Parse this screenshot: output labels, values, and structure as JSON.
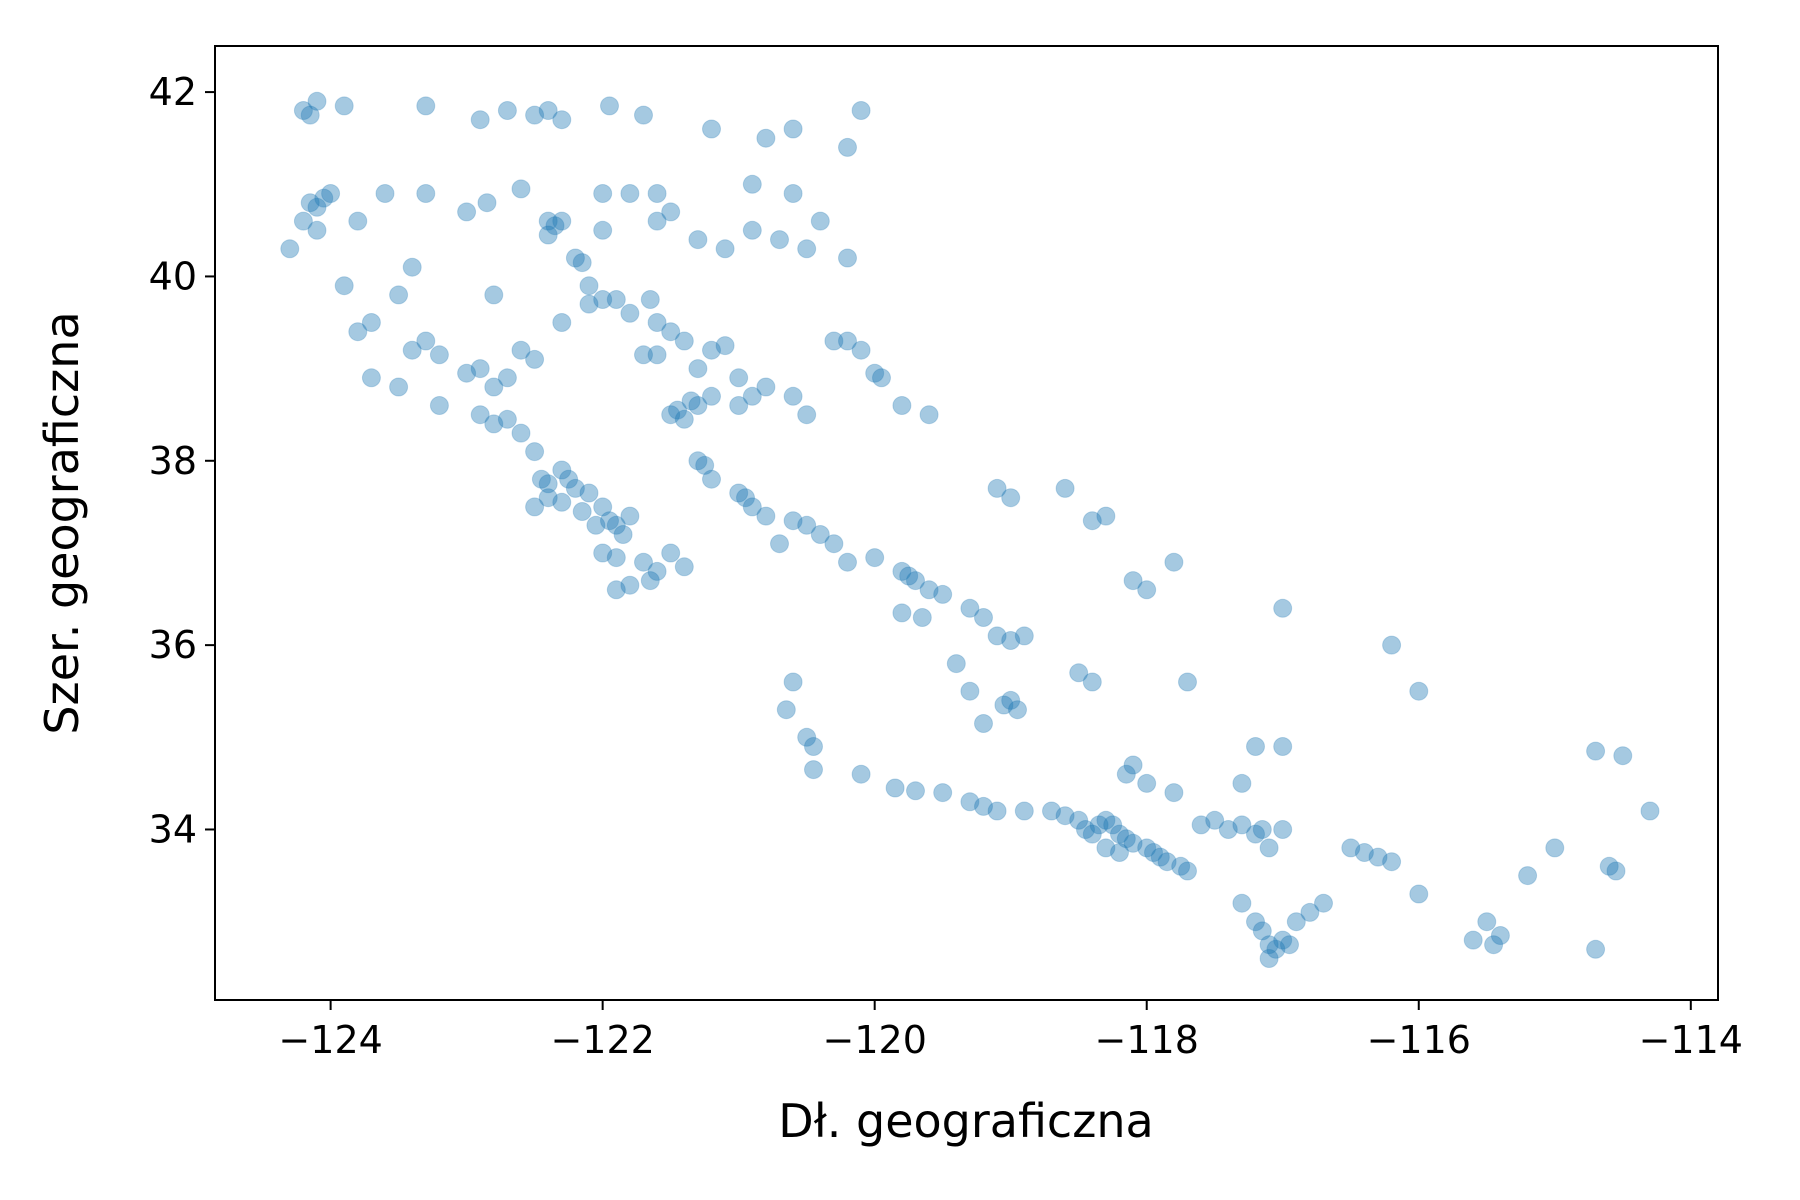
{
  "chart_data": {
    "type": "scatter",
    "title": "",
    "xlabel": "Dł. geograficzna",
    "ylabel": "Szer. geograficzna",
    "xlim": [
      -124.85,
      -113.8
    ],
    "ylim": [
      32.15,
      42.5
    ],
    "xticks": [
      -124,
      -122,
      -120,
      -118,
      -116,
      -114
    ],
    "yticks": [
      34,
      36,
      38,
      40,
      42
    ],
    "xtick_labels": [
      "−124",
      "−122",
      "−120",
      "−118",
      "−116",
      "−114"
    ],
    "ytick_labels": [
      "34",
      "36",
      "38",
      "40",
      "42"
    ],
    "grid": false,
    "legend": "none",
    "marker_color": "#1f77b4",
    "marker_alpha": 0.1,
    "series": [
      {
        "points": [
          [
            -124.2,
            41.8
          ],
          [
            -124.15,
            41.75
          ],
          [
            -124.1,
            41.9
          ],
          [
            -123.9,
            41.85
          ],
          [
            -123.3,
            41.85
          ],
          [
            -122.9,
            41.7
          ],
          [
            -122.7,
            41.8
          ],
          [
            -122.5,
            41.75
          ],
          [
            -122.4,
            41.8
          ],
          [
            -122.3,
            41.7
          ],
          [
            -121.95,
            41.85
          ],
          [
            -121.7,
            41.75
          ],
          [
            -121.2,
            41.6
          ],
          [
            -120.8,
            41.5
          ],
          [
            -120.6,
            41.6
          ],
          [
            -120.1,
            41.8
          ],
          [
            -120.2,
            41.4
          ],
          [
            -124.15,
            40.8
          ],
          [
            -124.1,
            40.75
          ],
          [
            -124.05,
            40.85
          ],
          [
            -124.2,
            40.6
          ],
          [
            -124.1,
            40.5
          ],
          [
            -124.0,
            40.9
          ],
          [
            -123.8,
            40.6
          ],
          [
            -123.6,
            40.9
          ],
          [
            -123.3,
            40.9
          ],
          [
            -123.0,
            40.7
          ],
          [
            -122.85,
            40.8
          ],
          [
            -122.6,
            40.95
          ],
          [
            -122.4,
            40.6
          ],
          [
            -122.35,
            40.55
          ],
          [
            -122.4,
            40.45
          ],
          [
            -122.3,
            40.6
          ],
          [
            -122.2,
            40.2
          ],
          [
            -122.15,
            40.15
          ],
          [
            -122.1,
            39.9
          ],
          [
            -122.0,
            40.5
          ],
          [
            -121.8,
            40.9
          ],
          [
            -121.6,
            40.6
          ],
          [
            -121.5,
            40.7
          ],
          [
            -121.3,
            40.4
          ],
          [
            -121.1,
            40.3
          ],
          [
            -120.9,
            40.5
          ],
          [
            -120.7,
            40.4
          ],
          [
            -120.5,
            40.3
          ],
          [
            -120.4,
            40.6
          ],
          [
            -120.2,
            40.2
          ],
          [
            -123.8,
            39.4
          ],
          [
            -123.7,
            39.5
          ],
          [
            -123.4,
            39.2
          ],
          [
            -123.3,
            39.3
          ],
          [
            -123.2,
            39.15
          ],
          [
            -123.0,
            38.95
          ],
          [
            -122.9,
            39.0
          ],
          [
            -122.8,
            38.8
          ],
          [
            -122.7,
            38.9
          ],
          [
            -122.6,
            39.2
          ],
          [
            -122.5,
            39.1
          ],
          [
            -122.3,
            39.5
          ],
          [
            -122.1,
            39.7
          ],
          [
            -122.0,
            39.75
          ],
          [
            -121.9,
            39.75
          ],
          [
            -121.8,
            39.6
          ],
          [
            -121.65,
            39.75
          ],
          [
            -121.6,
            39.5
          ],
          [
            -121.7,
            39.15
          ],
          [
            -121.6,
            39.15
          ],
          [
            -121.5,
            39.4
          ],
          [
            -121.4,
            39.3
          ],
          [
            -121.3,
            39.0
          ],
          [
            -121.2,
            39.2
          ],
          [
            -121.1,
            39.25
          ],
          [
            -121.0,
            38.9
          ],
          [
            -120.9,
            38.7
          ],
          [
            -120.8,
            38.8
          ],
          [
            -120.6,
            38.7
          ],
          [
            -120.5,
            38.5
          ],
          [
            -120.3,
            39.3
          ],
          [
            -120.2,
            39.3
          ],
          [
            -120.1,
            39.2
          ],
          [
            -120.0,
            38.95
          ],
          [
            -119.95,
            38.9
          ],
          [
            -119.8,
            38.6
          ],
          [
            -119.6,
            38.5
          ],
          [
            -122.9,
            38.5
          ],
          [
            -122.8,
            38.4
          ],
          [
            -122.7,
            38.45
          ],
          [
            -122.6,
            38.3
          ],
          [
            -122.5,
            38.1
          ],
          [
            -122.45,
            37.8
          ],
          [
            -122.4,
            37.75
          ],
          [
            -122.3,
            37.9
          ],
          [
            -122.25,
            37.8
          ],
          [
            -122.2,
            37.7
          ],
          [
            -122.1,
            37.65
          ],
          [
            -122.0,
            37.5
          ],
          [
            -121.95,
            37.35
          ],
          [
            -121.9,
            37.3
          ],
          [
            -121.85,
            37.2
          ],
          [
            -121.8,
            37.4
          ],
          [
            -122.05,
            37.3
          ],
          [
            -122.15,
            37.45
          ],
          [
            -122.3,
            37.55
          ],
          [
            -122.4,
            37.6
          ],
          [
            -122.5,
            37.5
          ],
          [
            -122.0,
            37.0
          ],
          [
            -121.9,
            36.95
          ],
          [
            -121.7,
            36.9
          ],
          [
            -121.8,
            36.65
          ],
          [
            -121.9,
            36.6
          ],
          [
            -121.65,
            36.7
          ],
          [
            -121.6,
            36.8
          ],
          [
            -121.4,
            36.85
          ],
          [
            -121.5,
            37.0
          ],
          [
            -121.3,
            38.6
          ],
          [
            -121.45,
            38.55
          ],
          [
            -121.35,
            38.65
          ],
          [
            -121.2,
            38.7
          ],
          [
            -121.5,
            38.5
          ],
          [
            -121.4,
            38.45
          ],
          [
            -121.0,
            38.6
          ],
          [
            -121.3,
            38.0
          ],
          [
            -121.25,
            37.95
          ],
          [
            -121.2,
            37.8
          ],
          [
            -121.0,
            37.65
          ],
          [
            -120.95,
            37.6
          ],
          [
            -120.9,
            37.5
          ],
          [
            -120.8,
            37.4
          ],
          [
            -120.6,
            37.35
          ],
          [
            -120.5,
            37.3
          ],
          [
            -120.4,
            37.2
          ],
          [
            -120.3,
            37.1
          ],
          [
            -120.0,
            36.95
          ],
          [
            -119.8,
            36.8
          ],
          [
            -119.75,
            36.75
          ],
          [
            -119.7,
            36.7
          ],
          [
            -119.6,
            36.6
          ],
          [
            -119.8,
            36.35
          ],
          [
            -119.65,
            36.3
          ],
          [
            -119.5,
            36.55
          ],
          [
            -119.3,
            36.4
          ],
          [
            -119.2,
            36.3
          ],
          [
            -119.1,
            36.1
          ],
          [
            -119.0,
            36.05
          ],
          [
            -120.7,
            37.1
          ],
          [
            -120.2,
            36.9
          ],
          [
            -120.6,
            35.6
          ],
          [
            -120.65,
            35.3
          ],
          [
            -120.5,
            35.0
          ],
          [
            -120.45,
            34.9
          ],
          [
            -120.45,
            34.65
          ],
          [
            -120.1,
            34.6
          ],
          [
            -119.85,
            34.45
          ],
          [
            -119.7,
            34.42
          ],
          [
            -119.5,
            34.4
          ],
          [
            -119.3,
            34.3
          ],
          [
            -119.2,
            34.25
          ],
          [
            -119.1,
            34.2
          ],
          [
            -118.9,
            34.2
          ],
          [
            -118.7,
            34.2
          ],
          [
            -118.6,
            34.15
          ],
          [
            -118.5,
            34.1
          ],
          [
            -118.45,
            34.0
          ],
          [
            -118.4,
            33.95
          ],
          [
            -118.35,
            34.05
          ],
          [
            -118.3,
            34.1
          ],
          [
            -118.25,
            34.05
          ],
          [
            -118.2,
            33.95
          ],
          [
            -118.15,
            33.9
          ],
          [
            -118.1,
            33.85
          ],
          [
            -118.0,
            33.8
          ],
          [
            -117.95,
            33.75
          ],
          [
            -117.9,
            33.7
          ],
          [
            -117.85,
            33.65
          ],
          [
            -117.75,
            33.6
          ],
          [
            -117.7,
            33.55
          ],
          [
            -117.6,
            34.05
          ],
          [
            -117.5,
            34.1
          ],
          [
            -117.4,
            34.0
          ],
          [
            -117.3,
            34.05
          ],
          [
            -117.2,
            33.95
          ],
          [
            -117.15,
            34.0
          ],
          [
            -117.1,
            33.8
          ],
          [
            -117.0,
            34.0
          ],
          [
            -118.3,
            33.8
          ],
          [
            -118.2,
            33.75
          ],
          [
            -118.1,
            34.7
          ],
          [
            -118.15,
            34.6
          ],
          [
            -118.0,
            34.5
          ],
          [
            -117.8,
            34.4
          ],
          [
            -117.3,
            34.5
          ],
          [
            -117.2,
            34.9
          ],
          [
            -117.0,
            34.9
          ],
          [
            -119.0,
            35.4
          ],
          [
            -119.05,
            35.35
          ],
          [
            -118.95,
            35.3
          ],
          [
            -119.2,
            35.15
          ],
          [
            -119.3,
            35.5
          ],
          [
            -119.4,
            35.8
          ],
          [
            -117.7,
            35.6
          ],
          [
            -117.3,
            33.2
          ],
          [
            -117.2,
            33.0
          ],
          [
            -117.15,
            32.9
          ],
          [
            -117.1,
            32.75
          ],
          [
            -117.05,
            32.7
          ],
          [
            -117.0,
            32.8
          ],
          [
            -117.1,
            32.6
          ],
          [
            -116.95,
            32.75
          ],
          [
            -116.9,
            33.0
          ],
          [
            -116.8,
            33.1
          ],
          [
            -116.7,
            33.2
          ],
          [
            -116.5,
            33.8
          ],
          [
            -116.4,
            33.75
          ],
          [
            -116.3,
            33.7
          ],
          [
            -116.2,
            33.65
          ],
          [
            -116.0,
            33.3
          ],
          [
            -115.5,
            33.0
          ],
          [
            -115.6,
            32.8
          ],
          [
            -115.45,
            32.75
          ],
          [
            -115.4,
            32.85
          ],
          [
            -114.6,
            33.6
          ],
          [
            -114.55,
            33.55
          ],
          [
            -114.7,
            34.85
          ],
          [
            -114.5,
            34.8
          ],
          [
            -114.3,
            34.2
          ],
          [
            -115.0,
            33.8
          ],
          [
            -115.2,
            33.5
          ],
          [
            -114.7,
            32.7
          ],
          [
            -116.0,
            35.5
          ],
          [
            -116.2,
            36.0
          ],
          [
            -117.0,
            36.4
          ],
          [
            -118.3,
            37.4
          ],
          [
            -118.4,
            37.35
          ],
          [
            -118.6,
            37.7
          ],
          [
            -119.0,
            37.6
          ],
          [
            -119.1,
            37.7
          ],
          [
            -118.0,
            36.6
          ],
          [
            -118.1,
            36.7
          ],
          [
            -117.8,
            36.9
          ],
          [
            -118.9,
            36.1
          ],
          [
            -118.5,
            35.7
          ],
          [
            -118.4,
            35.6
          ],
          [
            -123.5,
            38.8
          ],
          [
            -123.2,
            38.6
          ],
          [
            -123.7,
            38.9
          ],
          [
            -122.0,
            40.9
          ],
          [
            -121.6,
            40.9
          ],
          [
            -120.9,
            41.0
          ],
          [
            -120.6,
            40.9
          ],
          [
            -124.3,
            40.3
          ],
          [
            -123.9,
            39.9
          ],
          [
            -123.5,
            39.8
          ],
          [
            -123.4,
            40.1
          ],
          [
            -122.8,
            39.8
          ]
        ]
      }
    ]
  }
}
